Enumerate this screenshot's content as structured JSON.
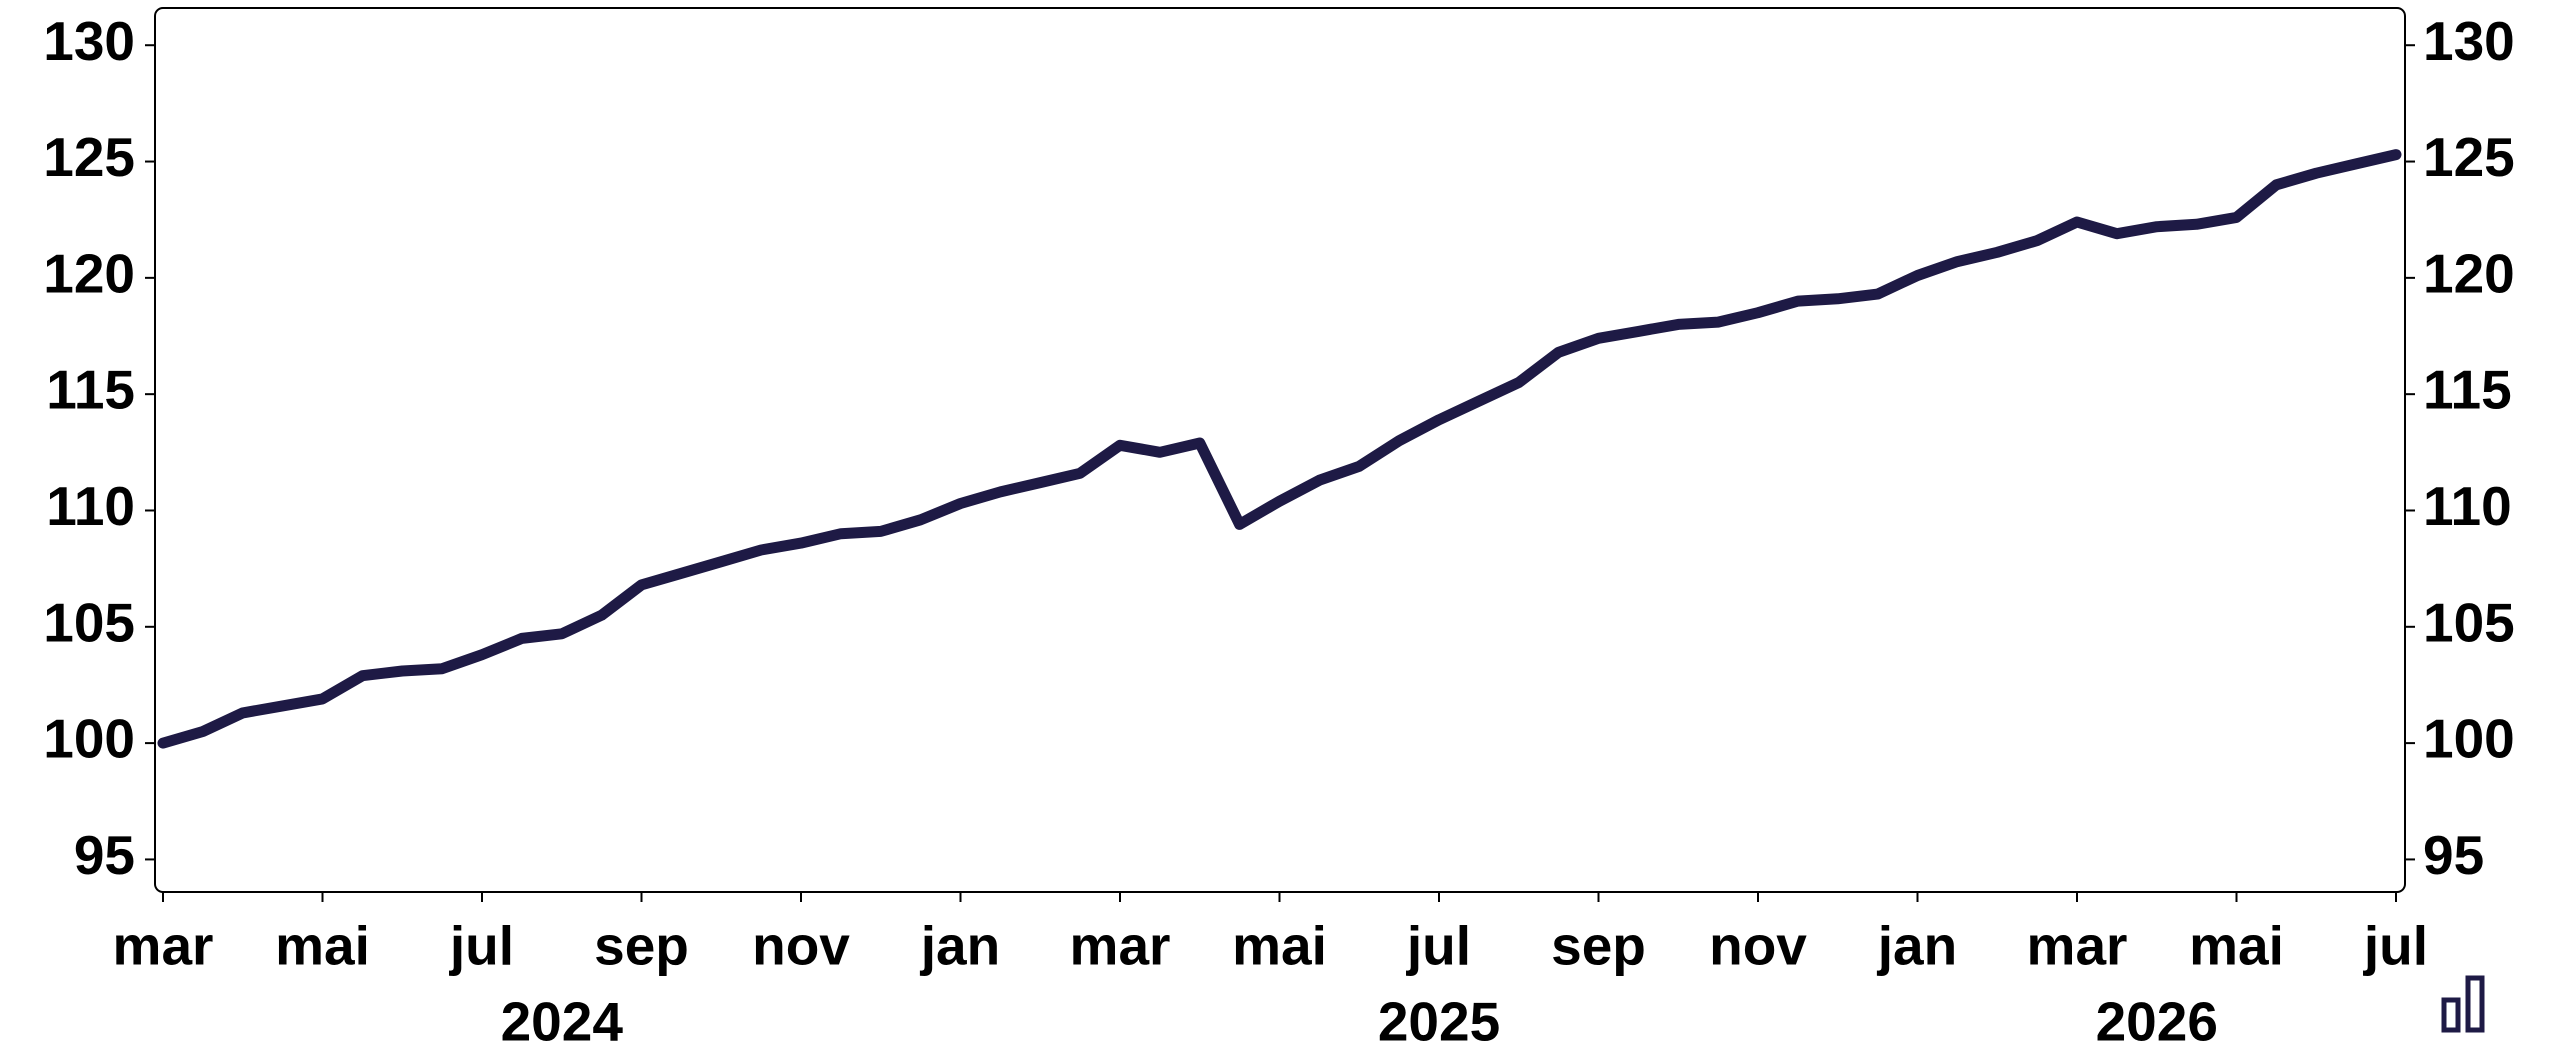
{
  "chart_data": {
    "type": "line",
    "categories": [
      "mar",
      null,
      null,
      null,
      "mai",
      null,
      null,
      null,
      "jul",
      null,
      null,
      null,
      "sep",
      null,
      null,
      null,
      "nov",
      null,
      null,
      null,
      "jan",
      null,
      null,
      null,
      "mar",
      null,
      null,
      null,
      "mai",
      null,
      null,
      null,
      "jul",
      null,
      null,
      null,
      "sep",
      null,
      null,
      null,
      "nov",
      null,
      null,
      null,
      "jan",
      null,
      null,
      null,
      "mar",
      null,
      null,
      null,
      "mai",
      null,
      null,
      null,
      "jul"
    ],
    "years": [
      "2024",
      "2025",
      "2026"
    ],
    "series": [
      {
        "color": "#1e1a45",
        "values": [
          100,
          100.5,
          101.3,
          101.6,
          101.9,
          102.9,
          103.1,
          103.2,
          103.8,
          104.5,
          104.7,
          105.5,
          106.8,
          107.3,
          107.8,
          108.3,
          108.6,
          109,
          109.1,
          109.6,
          110.3,
          110.8,
          111.2,
          111.6,
          112.8,
          112.5,
          112.9,
          109.4,
          110.4,
          111.3,
          111.9,
          113.0,
          113.9,
          114.7,
          115.5,
          116.8,
          117.4,
          117.7,
          118.0,
          118.1,
          118.5,
          119.0,
          119.1,
          119.3,
          120.1,
          120.7,
          121.1,
          121.6,
          122.4,
          121.9,
          122.2,
          122.3,
          122.6,
          124.0,
          124.5,
          124.9,
          125.3
        ]
      }
    ],
    "ylim": [
      93.6,
      131.6
    ],
    "yticks": [
      95,
      100,
      105,
      110,
      115,
      120,
      125,
      130
    ]
  }
}
